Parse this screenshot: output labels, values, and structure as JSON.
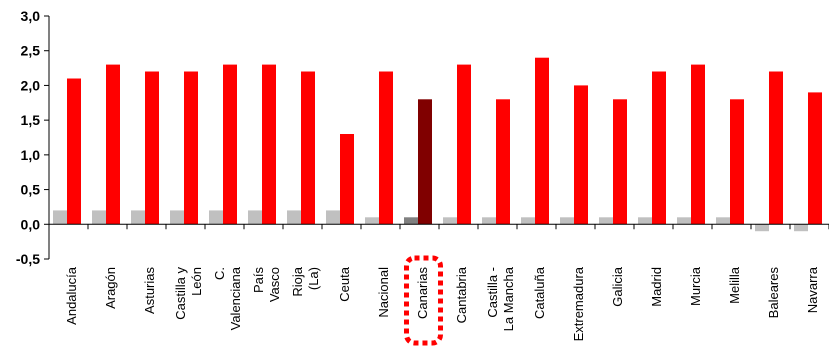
{
  "chart_data": {
    "type": "bar",
    "ylim": [
      -0.5,
      3.0
    ],
    "yticks": [
      "3,0",
      "2,5",
      "2,0",
      "1,5",
      "1,0",
      "0,5",
      "0,0",
      "-0,5"
    ],
    "ytick_values": [
      3.0,
      2.5,
      2.0,
      1.5,
      1.0,
      0.5,
      0.0,
      -0.5
    ],
    "categories": [
      [
        "Andalucía"
      ],
      [
        "Aragón"
      ],
      [
        "Asturias"
      ],
      [
        "Castilla y",
        "León"
      ],
      [
        "C.",
        "Valenciana"
      ],
      [
        "País",
        "Vasco"
      ],
      [
        "Rioja",
        "(La)"
      ],
      [
        "Ceuta"
      ],
      [
        "Nacional"
      ],
      [
        "Canarias"
      ],
      [
        "Cantabria"
      ],
      [
        "Castilla -",
        "La Mancha"
      ],
      [
        "Cataluña"
      ],
      [
        "Extremadura"
      ],
      [
        "Galicia"
      ],
      [
        "Madrid"
      ],
      [
        "Murcia"
      ],
      [
        "Melilla"
      ],
      [
        "Baleares"
      ],
      [
        "Navarra"
      ]
    ],
    "series": [
      {
        "values": [
          0.2,
          0.2,
          0.2,
          0.2,
          0.2,
          0.2,
          0.2,
          0.2,
          0.1,
          0.1,
          0.1,
          0.1,
          0.1,
          0.1,
          0.1,
          0.1,
          0.1,
          0.1,
          -0.1,
          -0.1
        ]
      },
      {
        "values": [
          2.1,
          2.3,
          2.2,
          2.2,
          2.3,
          2.3,
          2.2,
          1.3,
          2.2,
          1.8,
          2.3,
          1.8,
          2.4,
          2.0,
          1.8,
          2.2,
          2.3,
          1.8,
          2.2,
          1.9
        ]
      }
    ],
    "highlight_index": 9,
    "colors": {
      "series1": "#c0c0c0",
      "series1_highlight": "#808080",
      "series2": "#ff0000",
      "series2_highlight": "#800000",
      "highlight_box": "#ff0000",
      "axis": "#000000"
    },
    "grid": false,
    "legend": "none"
  }
}
